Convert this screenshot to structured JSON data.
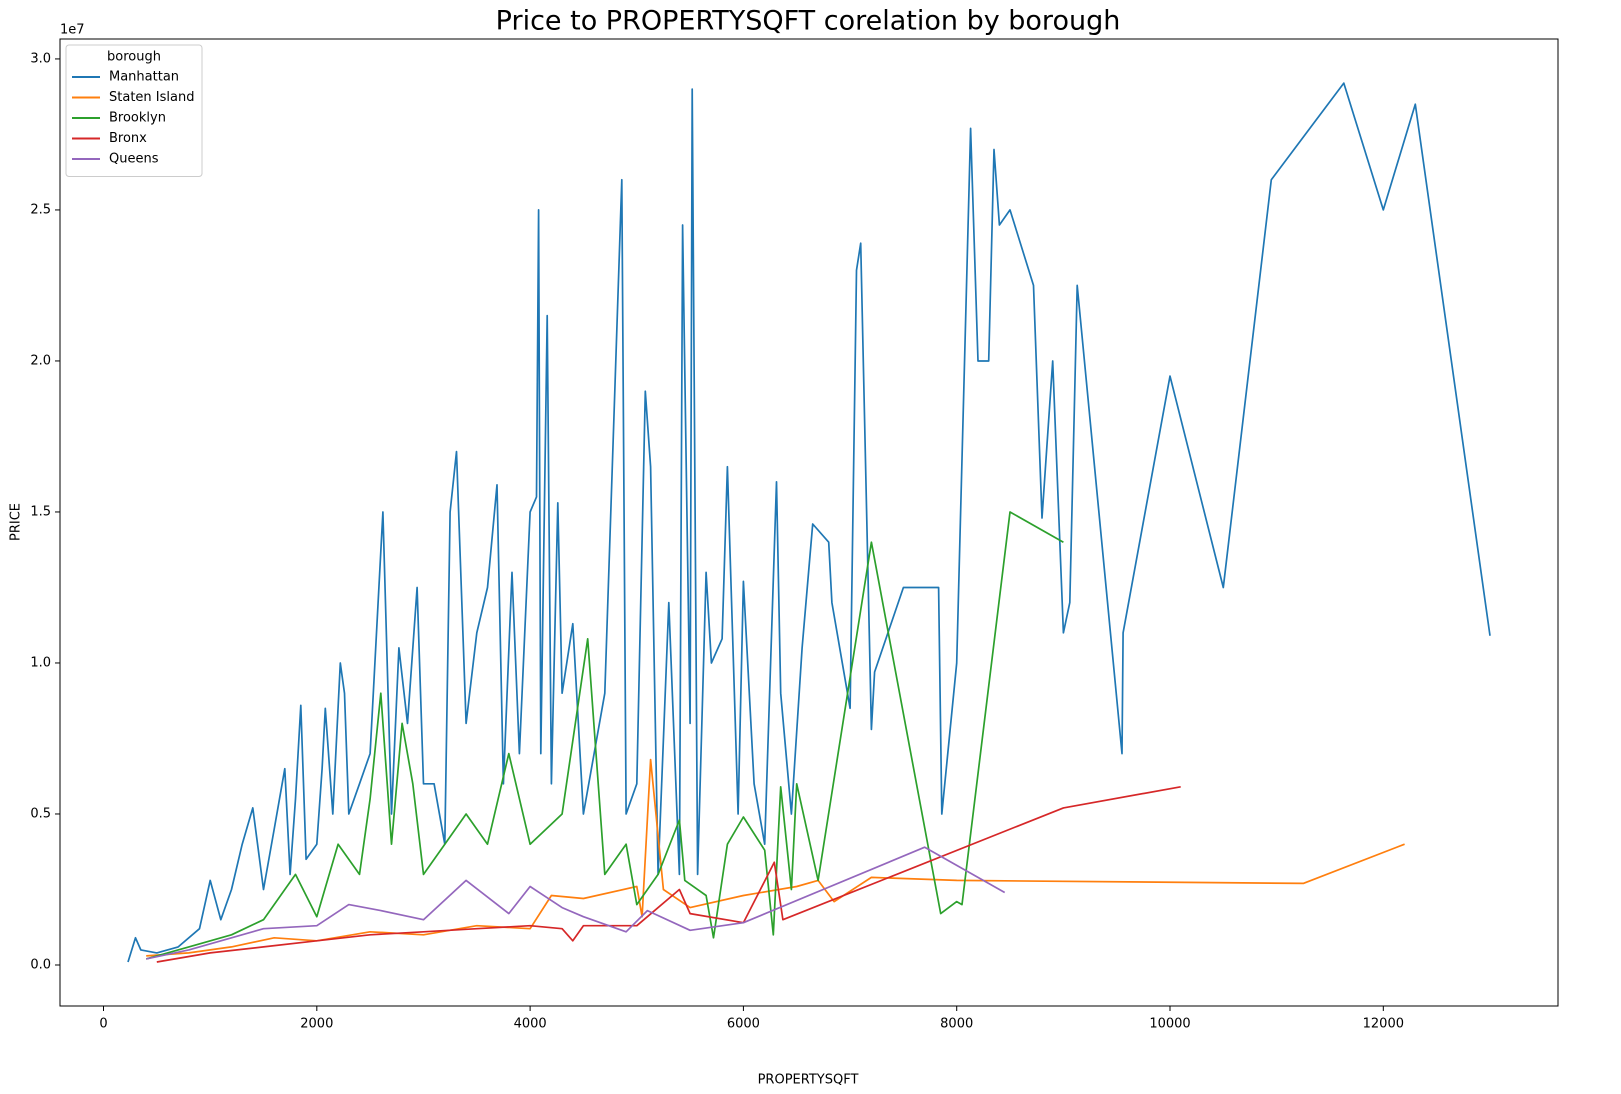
{
  "chart_data": {
    "type": "line",
    "title": "Price to PROPERTYSQFT corelation by borough",
    "xlabel": "PROPERTYSQFT",
    "ylabel": "PRICE",
    "y_offset_label": "1e7",
    "legend_title": "borough",
    "legend": "upper left",
    "xlim": [
      -408,
      13638
    ],
    "xticks": [
      0,
      2000,
      4000,
      6000,
      8000,
      10000,
      12000
    ],
    "ylim": [
      -1358000,
      30660000
    ],
    "yticks": [
      {
        "value": 0,
        "label": "0.0"
      },
      {
        "value": 5000000,
        "label": "0.5"
      },
      {
        "value": 10000000,
        "label": "1.0"
      },
      {
        "value": 15000000,
        "label": "1.5"
      },
      {
        "value": 20000000,
        "label": "2.0"
      },
      {
        "value": 25000000,
        "label": "2.5"
      },
      {
        "value": 30000000,
        "label": "3.0"
      }
    ],
    "series": [
      {
        "name": "Manhattan",
        "color": "#1f77b4",
        "x": [
          230,
          300,
          350,
          500,
          700,
          900,
          1000,
          1100,
          1200,
          1300,
          1400,
          1500,
          1600,
          1700,
          1750,
          1800,
          1850,
          1900,
          2000,
          2050,
          2080,
          2150,
          2220,
          2260,
          2300,
          2400,
          2500,
          2620,
          2700,
          2770,
          2850,
          2940,
          3000,
          3100,
          3200,
          3250,
          3310,
          3400,
          3500,
          3600,
          3690,
          3750,
          3830,
          3900,
          4000,
          4060,
          4080,
          4100,
          4160,
          4200,
          4260,
          4300,
          4400,
          4500,
          4600,
          4700,
          4860,
          4900,
          5000,
          5080,
          5130,
          5200,
          5300,
          5400,
          5430,
          5500,
          5520,
          5570,
          5650,
          5700,
          5800,
          5850,
          5950,
          6000,
          6100,
          6200,
          6310,
          6350,
          6450,
          6550,
          6650,
          6800,
          6830,
          7000,
          7060,
          7100,
          7200,
          7230,
          7500,
          7830,
          7860,
          8000,
          8130,
          8200,
          8300,
          8350,
          8400,
          8500,
          8720,
          8800,
          8900,
          9000,
          9060,
          9130,
          9550,
          9560,
          10000,
          10500,
          10950,
          11630,
          12000,
          12300,
          13000
        ],
        "values": [
          100000,
          900000,
          500000,
          400000,
          600000,
          1200000,
          2800000,
          1500000,
          2500000,
          4000000,
          5200000,
          2500000,
          4500000,
          6500000,
          3000000,
          5500000,
          8600000,
          3500000,
          4000000,
          6500000,
          8500000,
          5000000,
          10000000,
          9000000,
          5000000,
          6000000,
          7000000,
          15000000,
          5000000,
          10500000,
          8000000,
          12500000,
          6000000,
          6000000,
          4000000,
          15000000,
          17000000,
          8000000,
          11000000,
          12500000,
          15900000,
          6000000,
          13000000,
          7000000,
          15000000,
          15500000,
          25000000,
          7000000,
          21500000,
          6000000,
          15300000,
          9000000,
          11300000,
          5000000,
          7000000,
          9000000,
          26000000,
          5000000,
          6000000,
          19000000,
          16500000,
          3000000,
          12000000,
          3000000,
          24500000,
          8000000,
          29000000,
          3000000,
          13000000,
          10000000,
          10800000,
          16500000,
          5000000,
          12700000,
          6000000,
          4000000,
          16000000,
          9000000,
          5000000,
          10500000,
          14600000,
          14000000,
          12000000,
          8500000,
          23000000,
          23900000,
          7800000,
          9700000,
          12500000,
          12500000,
          5000000,
          10000000,
          27700000,
          20000000,
          20000000,
          27000000,
          24500000,
          25000000,
          22500000,
          14800000,
          20000000,
          11000000,
          12000000,
          22500000,
          7000000,
          11000000,
          19500000,
          12500000,
          26000000,
          29200000,
          25000000,
          28500000,
          10900000
        ]
      },
      {
        "name": "Staten Island",
        "color": "#ff7f0e",
        "x": [
          400,
          800,
          1200,
          1600,
          2000,
          2500,
          3000,
          3500,
          4000,
          4200,
          4500,
          5000,
          5050,
          5130,
          5250,
          5500,
          6000,
          6500,
          6700,
          6850,
          7200,
          8000,
          11250,
          12200
        ],
        "values": [
          300000,
          400000,
          600000,
          900000,
          800000,
          1100000,
          1000000,
          1300000,
          1200000,
          2300000,
          2200000,
          2600000,
          1600000,
          6800000,
          2500000,
          1900000,
          2300000,
          2600000,
          2800000,
          2100000,
          2900000,
          2800000,
          2700000,
          4000000
        ]
      },
      {
        "name": "Brooklyn",
        "color": "#2ca02c",
        "x": [
          400,
          800,
          1200,
          1500,
          1800,
          2000,
          2200,
          2400,
          2500,
          2600,
          2700,
          2800,
          2900,
          3000,
          3200,
          3400,
          3600,
          3800,
          4000,
          4300,
          4540,
          4700,
          4900,
          5000,
          5200,
          5400,
          5450,
          5650,
          5720,
          5850,
          6000,
          6200,
          6280,
          6350,
          6450,
          6500,
          6700,
          7200,
          7850,
          8000,
          8050,
          8500,
          9000
        ],
        "values": [
          200000,
          600000,
          1000000,
          1500000,
          3000000,
          1600000,
          4000000,
          3000000,
          5500000,
          9000000,
          4000000,
          8000000,
          6000000,
          3000000,
          4000000,
          5000000,
          4000000,
          7000000,
          4000000,
          5000000,
          10800000,
          3000000,
          4000000,
          2000000,
          3000000,
          4800000,
          2800000,
          2300000,
          900000,
          4000000,
          4900000,
          3800000,
          1000000,
          5900000,
          2500000,
          6000000,
          2800000,
          14000000,
          1700000,
          2100000,
          2000000,
          15000000,
          14000000
        ]
      },
      {
        "name": "Bronx",
        "color": "#d62728",
        "x": [
          500,
          1000,
          1500,
          2000,
          2500,
          3000,
          3500,
          4000,
          4300,
          4400,
          4500,
          5000,
          5400,
          5500,
          6000,
          6290,
          6370,
          9000,
          10100
        ],
        "values": [
          100000,
          400000,
          600000,
          800000,
          1000000,
          1100000,
          1200000,
          1300000,
          1200000,
          800000,
          1300000,
          1300000,
          2500000,
          1700000,
          1400000,
          3400000,
          1500000,
          5200000,
          5900000
        ]
      },
      {
        "name": "Queens",
        "color": "#9467bd",
        "x": [
          400,
          800,
          1200,
          1500,
          2000,
          2300,
          2600,
          3000,
          3400,
          3800,
          4000,
          4300,
          4500,
          4900,
          5100,
          5500,
          6000,
          7700,
          8450
        ],
        "values": [
          200000,
          500000,
          900000,
          1200000,
          1300000,
          2000000,
          1800000,
          1500000,
          2800000,
          1700000,
          2600000,
          1900000,
          1600000,
          1100000,
          1800000,
          1150000,
          1400000,
          3900000,
          2400000
        ]
      }
    ]
  }
}
